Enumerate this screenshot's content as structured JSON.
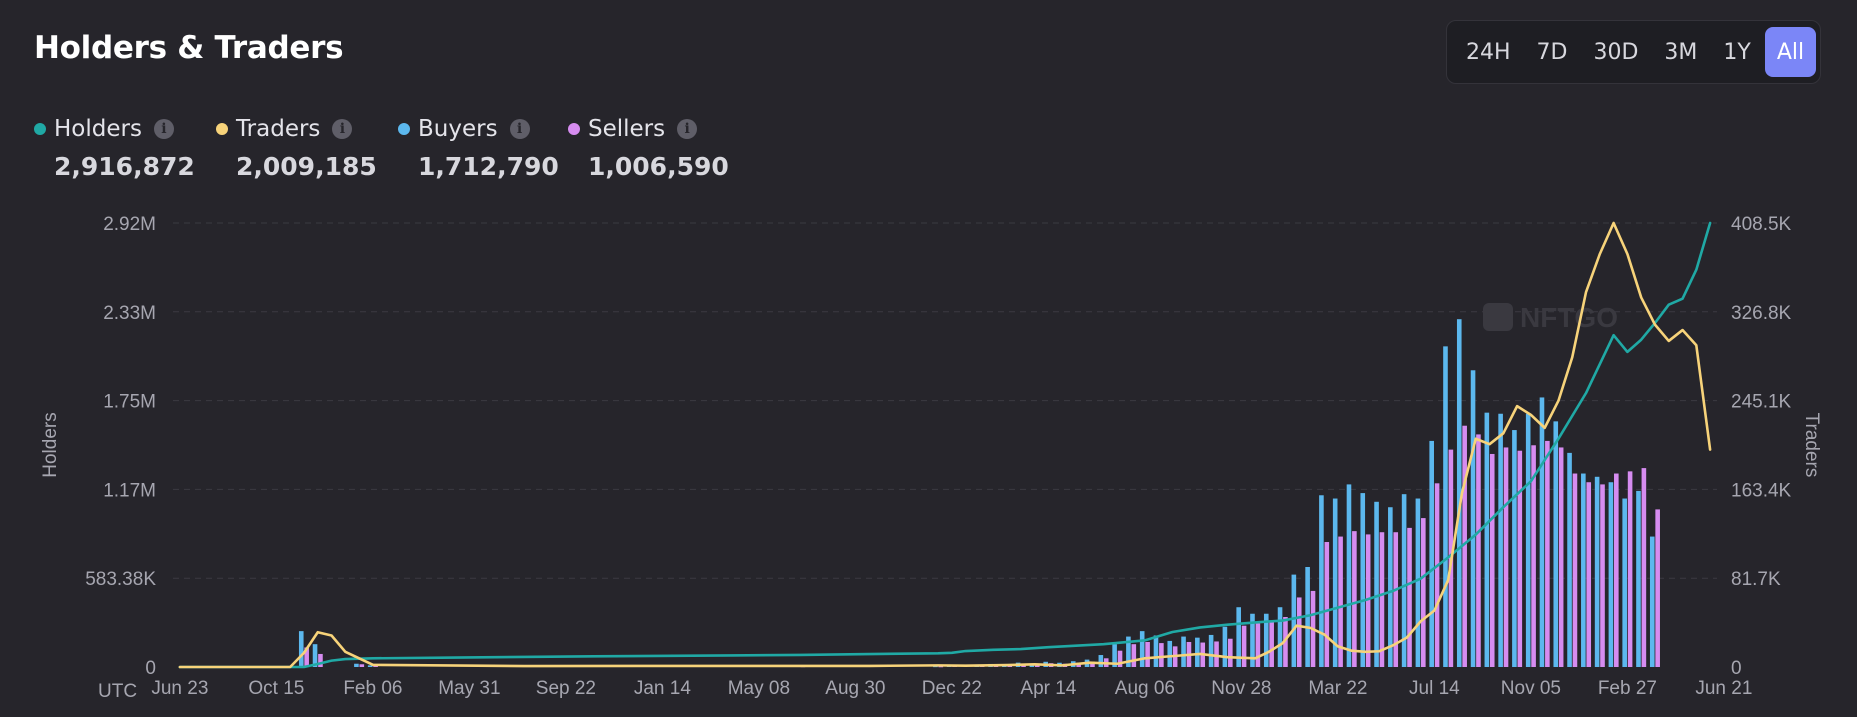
{
  "header": {
    "title": "Holders & Traders"
  },
  "time_range": {
    "options": [
      "24H",
      "7D",
      "30D",
      "3M",
      "1Y",
      "All"
    ],
    "selected": "All"
  },
  "legend": [
    {
      "key": "holders",
      "label": "Holders",
      "value": "2,916,872",
      "color": "#20a9a5",
      "icon": "info-icon"
    },
    {
      "key": "traders",
      "label": "Traders",
      "value": "2,009,185",
      "color": "#f7d37a",
      "icon": "info-icon"
    },
    {
      "key": "buyers",
      "label": "Buyers",
      "value": "1,712,790",
      "color": "#5cb8ee",
      "icon": "info-icon"
    },
    {
      "key": "sellers",
      "label": "Sellers",
      "value": "1,006,590",
      "color": "#d68cf0",
      "icon": "info-icon"
    }
  ],
  "info_glyph": "i",
  "colors": {
    "background": "#26252b",
    "grid": "#3b3a42",
    "axis_text": "#a6a6b0",
    "holders": "#20a9a5",
    "traders": "#f7d37a",
    "buyers": "#5cb8ee",
    "sellers": "#d68cf0",
    "accent": "#7b86f7"
  },
  "chart_data": {
    "type": "bar+line",
    "timezone_label": "UTC",
    "xlabels": [
      "Jun 23",
      "Oct 15",
      "Feb 06",
      "May 31",
      "Sep 22",
      "Jan 14",
      "May 08",
      "Aug 30",
      "Dec 22",
      "Apr 14",
      "Aug 06",
      "Nov 28",
      "Mar 22",
      "Jul 14",
      "Nov 05",
      "Feb 27",
      "Jun 21"
    ],
    "left_axis": {
      "label": "Holders",
      "ticks": [
        "0",
        "583.38K",
        "1.17M",
        "1.75M",
        "2.33M",
        "2.92M"
      ],
      "range": [
        0,
        2916872
      ]
    },
    "right_axis": {
      "label": "Traders",
      "ticks": [
        "0",
        "81.7K",
        "163.4K",
        "245.1K",
        "326.8K",
        "408.5K"
      ],
      "range": [
        0,
        408500
      ]
    },
    "grid": true,
    "watermark": "NFTGO",
    "periods": 112,
    "series": [
      {
        "name": "Holders",
        "axis": "left",
        "kind": "line",
        "points": [
          [
            0,
            0
          ],
          [
            9,
            0
          ],
          [
            10,
            20000
          ],
          [
            11,
            42000
          ],
          [
            12,
            52000
          ],
          [
            14,
            57000
          ],
          [
            20,
            62000
          ],
          [
            30,
            70000
          ],
          [
            40,
            76000
          ],
          [
            45,
            79000
          ],
          [
            50,
            85000
          ],
          [
            55,
            90000
          ],
          [
            56,
            93000
          ],
          [
            57,
            105000
          ],
          [
            59,
            113000
          ],
          [
            61,
            118000
          ],
          [
            63,
            130000
          ],
          [
            65,
            140000
          ],
          [
            67,
            150000
          ],
          [
            70,
            175000
          ],
          [
            72,
            230000
          ],
          [
            74,
            260000
          ],
          [
            76,
            278000
          ],
          [
            78,
            293000
          ],
          [
            80,
            305000
          ],
          [
            82,
            340000
          ],
          [
            84,
            390000
          ],
          [
            86,
            440000
          ],
          [
            88,
            500000
          ],
          [
            90,
            580000
          ],
          [
            92,
            720000
          ],
          [
            94,
            870000
          ],
          [
            96,
            1050000
          ],
          [
            98,
            1220000
          ],
          [
            100,
            1500000
          ],
          [
            102,
            1800000
          ],
          [
            104,
            2180000
          ],
          [
            105,
            2070000
          ],
          [
            106,
            2150000
          ],
          [
            107,
            2260000
          ],
          [
            108,
            2380000
          ],
          [
            109,
            2420000
          ],
          [
            110,
            2610000
          ],
          [
            111,
            2916872
          ]
        ]
      },
      {
        "name": "Traders",
        "axis": "right",
        "kind": "line",
        "points": [
          [
            0,
            0
          ],
          [
            8,
            0
          ],
          [
            9,
            13000
          ],
          [
            10,
            32000
          ],
          [
            11,
            29000
          ],
          [
            12,
            14000
          ],
          [
            14,
            2000
          ],
          [
            25,
            900
          ],
          [
            50,
            1000
          ],
          [
            55,
            1500
          ],
          [
            57,
            1200
          ],
          [
            60,
            1800
          ],
          [
            62,
            2500
          ],
          [
            64,
            1500
          ],
          [
            66,
            4000
          ],
          [
            68,
            3000
          ],
          [
            70,
            8000
          ],
          [
            72,
            10000
          ],
          [
            74,
            12000
          ],
          [
            76,
            9000
          ],
          [
            78,
            8000
          ],
          [
            79,
            14000
          ],
          [
            80,
            22000
          ],
          [
            81,
            38000
          ],
          [
            82,
            36000
          ],
          [
            83,
            30000
          ],
          [
            84,
            19000
          ],
          [
            85,
            15000
          ],
          [
            86,
            14000
          ],
          [
            87,
            14500
          ],
          [
            88,
            20000
          ],
          [
            89,
            27000
          ],
          [
            90,
            42000
          ],
          [
            91,
            52000
          ],
          [
            92,
            80000
          ],
          [
            93,
            160000
          ],
          [
            94,
            210000
          ],
          [
            95,
            205000
          ],
          [
            96,
            215000
          ],
          [
            97,
            240000
          ],
          [
            98,
            232000
          ],
          [
            99,
            220000
          ],
          [
            100,
            245000
          ],
          [
            101,
            285000
          ],
          [
            102,
            345000
          ],
          [
            103,
            380000
          ],
          [
            104,
            408500
          ],
          [
            105,
            380000
          ],
          [
            106,
            340000
          ],
          [
            107,
            315000
          ],
          [
            108,
            300000
          ],
          [
            109,
            310000
          ],
          [
            110,
            296000
          ],
          [
            111,
            200000
          ]
        ]
      },
      {
        "name": "Buyers",
        "axis": "right",
        "kind": "bar",
        "points": [
          [
            9,
            33000
          ],
          [
            10,
            21000
          ],
          [
            13,
            3000
          ],
          [
            14,
            1500
          ],
          [
            45,
            800
          ],
          [
            55,
            600
          ],
          [
            56,
            1800
          ],
          [
            58,
            1100
          ],
          [
            59,
            2800
          ],
          [
            60,
            2100
          ],
          [
            61,
            4000
          ],
          [
            62,
            3200
          ],
          [
            63,
            4800
          ],
          [
            64,
            3900
          ],
          [
            65,
            5300
          ],
          [
            66,
            6800
          ],
          [
            67,
            11000
          ],
          [
            68,
            21000
          ],
          [
            69,
            28000
          ],
          [
            70,
            33000
          ],
          [
            71,
            29000
          ],
          [
            72,
            24000
          ],
          [
            73,
            28000
          ],
          [
            74,
            27000
          ],
          [
            75,
            29500
          ],
          [
            76,
            37000
          ],
          [
            77,
            55000
          ],
          [
            78,
            49000
          ],
          [
            79,
            49000
          ],
          [
            80,
            55000
          ],
          [
            81,
            85000
          ],
          [
            82,
            92000
          ],
          [
            83,
            158000
          ],
          [
            84,
            155000
          ],
          [
            85,
            168000
          ],
          [
            86,
            160000
          ],
          [
            87,
            152000
          ],
          [
            88,
            147000
          ],
          [
            89,
            159000
          ],
          [
            90,
            155000
          ],
          [
            91,
            208000
          ],
          [
            92,
            295000
          ],
          [
            93,
            320000
          ],
          [
            94,
            273000
          ],
          [
            95,
            234000
          ],
          [
            96,
            233000
          ],
          [
            97,
            218000
          ],
          [
            98,
            233000
          ],
          [
            99,
            248000
          ],
          [
            100,
            226000
          ],
          [
            101,
            197000
          ],
          [
            102,
            178000
          ],
          [
            103,
            175000
          ],
          [
            104,
            170000
          ],
          [
            105,
            155000
          ],
          [
            106,
            162000
          ],
          [
            107,
            120000
          ]
        ]
      },
      {
        "name": "Sellers",
        "axis": "right",
        "kind": "bar",
        "points": [
          [
            9,
            18000
          ],
          [
            10,
            12000
          ],
          [
            13,
            2500
          ],
          [
            14,
            1200
          ],
          [
            45,
            600
          ],
          [
            55,
            500
          ],
          [
            56,
            1200
          ],
          [
            58,
            900
          ],
          [
            59,
            2000
          ],
          [
            60,
            1700
          ],
          [
            61,
            2800
          ],
          [
            62,
            2500
          ],
          [
            63,
            3500
          ],
          [
            64,
            3000
          ],
          [
            65,
            4000
          ],
          [
            66,
            5000
          ],
          [
            67,
            8000
          ],
          [
            68,
            15000
          ],
          [
            69,
            21000
          ],
          [
            70,
            23000
          ],
          [
            71,
            22000
          ],
          [
            72,
            19000
          ],
          [
            73,
            23000
          ],
          [
            74,
            22500
          ],
          [
            75,
            23500
          ],
          [
            76,
            26000
          ],
          [
            77,
            38000
          ],
          [
            78,
            40000
          ],
          [
            79,
            42000
          ],
          [
            80,
            46000
          ],
          [
            81,
            64000
          ],
          [
            82,
            70000
          ],
          [
            83,
            115000
          ],
          [
            84,
            120000
          ],
          [
            85,
            125000
          ],
          [
            86,
            122000
          ],
          [
            87,
            124000
          ],
          [
            88,
            124000
          ],
          [
            89,
            128000
          ],
          [
            90,
            137000
          ],
          [
            91,
            169000
          ],
          [
            92,
            200000
          ],
          [
            93,
            222000
          ],
          [
            94,
            214000
          ],
          [
            95,
            196000
          ],
          [
            96,
            202000
          ],
          [
            97,
            199000
          ],
          [
            98,
            204000
          ],
          [
            99,
            208000
          ],
          [
            100,
            202000
          ],
          [
            101,
            178000
          ],
          [
            102,
            170000
          ],
          [
            103,
            168000
          ],
          [
            104,
            178000
          ],
          [
            105,
            180000
          ],
          [
            106,
            183000
          ],
          [
            107,
            145000
          ]
        ]
      }
    ]
  }
}
